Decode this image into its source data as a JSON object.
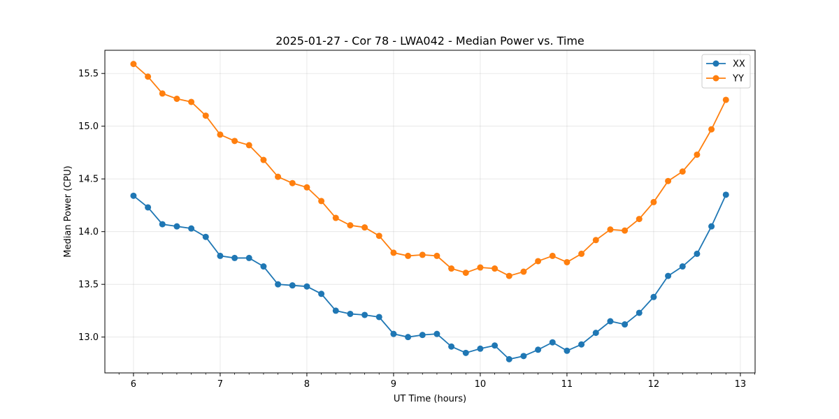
{
  "chart_data": {
    "type": "line",
    "title": "2025-01-27 - Cor 78 - LWA042 - Median Power vs. Time",
    "xlabel": "UT Time (hours)",
    "ylabel": "Median Power (CPU)",
    "xlim": [
      5.67,
      13.17
    ],
    "ylim": [
      12.66,
      15.72
    ],
    "xticks": [
      6,
      7,
      8,
      9,
      10,
      11,
      12,
      13
    ],
    "xtick_labels": [
      "6",
      "7",
      "8",
      "9",
      "10",
      "11",
      "12",
      "13"
    ],
    "yticks": [
      13.0,
      13.5,
      14.0,
      14.5,
      15.0,
      15.5
    ],
    "ytick_labels": [
      "13.0",
      "13.5",
      "14.0",
      "14.5",
      "15.0",
      "15.5"
    ],
    "grid": true,
    "legend_position": "top-right",
    "x": [
      6.0,
      6.1667,
      6.3333,
      6.5,
      6.6667,
      6.8333,
      7.0,
      7.1667,
      7.3333,
      7.5,
      7.6667,
      7.8333,
      8.0,
      8.1667,
      8.3333,
      8.5,
      8.6667,
      8.8333,
      9.0,
      9.1667,
      9.3333,
      9.5,
      9.6667,
      9.8333,
      10.0,
      10.1667,
      10.3333,
      10.5,
      10.6667,
      10.8333,
      11.0,
      11.1667,
      11.3333,
      11.5,
      11.6667,
      11.8333,
      12.0,
      12.1667,
      12.3333,
      12.5,
      12.6667,
      12.8333
    ],
    "series": [
      {
        "name": "XX",
        "color": "#1f77b4",
        "values": [
          14.34,
          14.23,
          14.07,
          14.05,
          14.03,
          13.95,
          13.77,
          13.75,
          13.75,
          13.67,
          13.5,
          13.49,
          13.48,
          13.41,
          13.25,
          13.22,
          13.21,
          13.19,
          13.03,
          13.0,
          13.02,
          13.03,
          12.91,
          12.85,
          12.89,
          12.92,
          12.79,
          12.82,
          12.88,
          12.95,
          12.87,
          12.93,
          13.04,
          13.15,
          13.12,
          13.23,
          13.38,
          13.58,
          13.67,
          13.79,
          14.05,
          14.35
        ]
      },
      {
        "name": "YY",
        "color": "#ff7f0e",
        "values": [
          15.59,
          15.47,
          15.31,
          15.26,
          15.23,
          15.1,
          14.92,
          14.86,
          14.82,
          14.68,
          14.52,
          14.46,
          14.42,
          14.29,
          14.13,
          14.06,
          14.04,
          13.96,
          13.8,
          13.77,
          13.78,
          13.77,
          13.65,
          13.61,
          13.66,
          13.65,
          13.58,
          13.62,
          13.72,
          13.77,
          13.71,
          13.79,
          13.92,
          14.02,
          14.01,
          14.12,
          14.28,
          14.48,
          14.57,
          14.73,
          14.97,
          15.25
        ]
      }
    ]
  }
}
